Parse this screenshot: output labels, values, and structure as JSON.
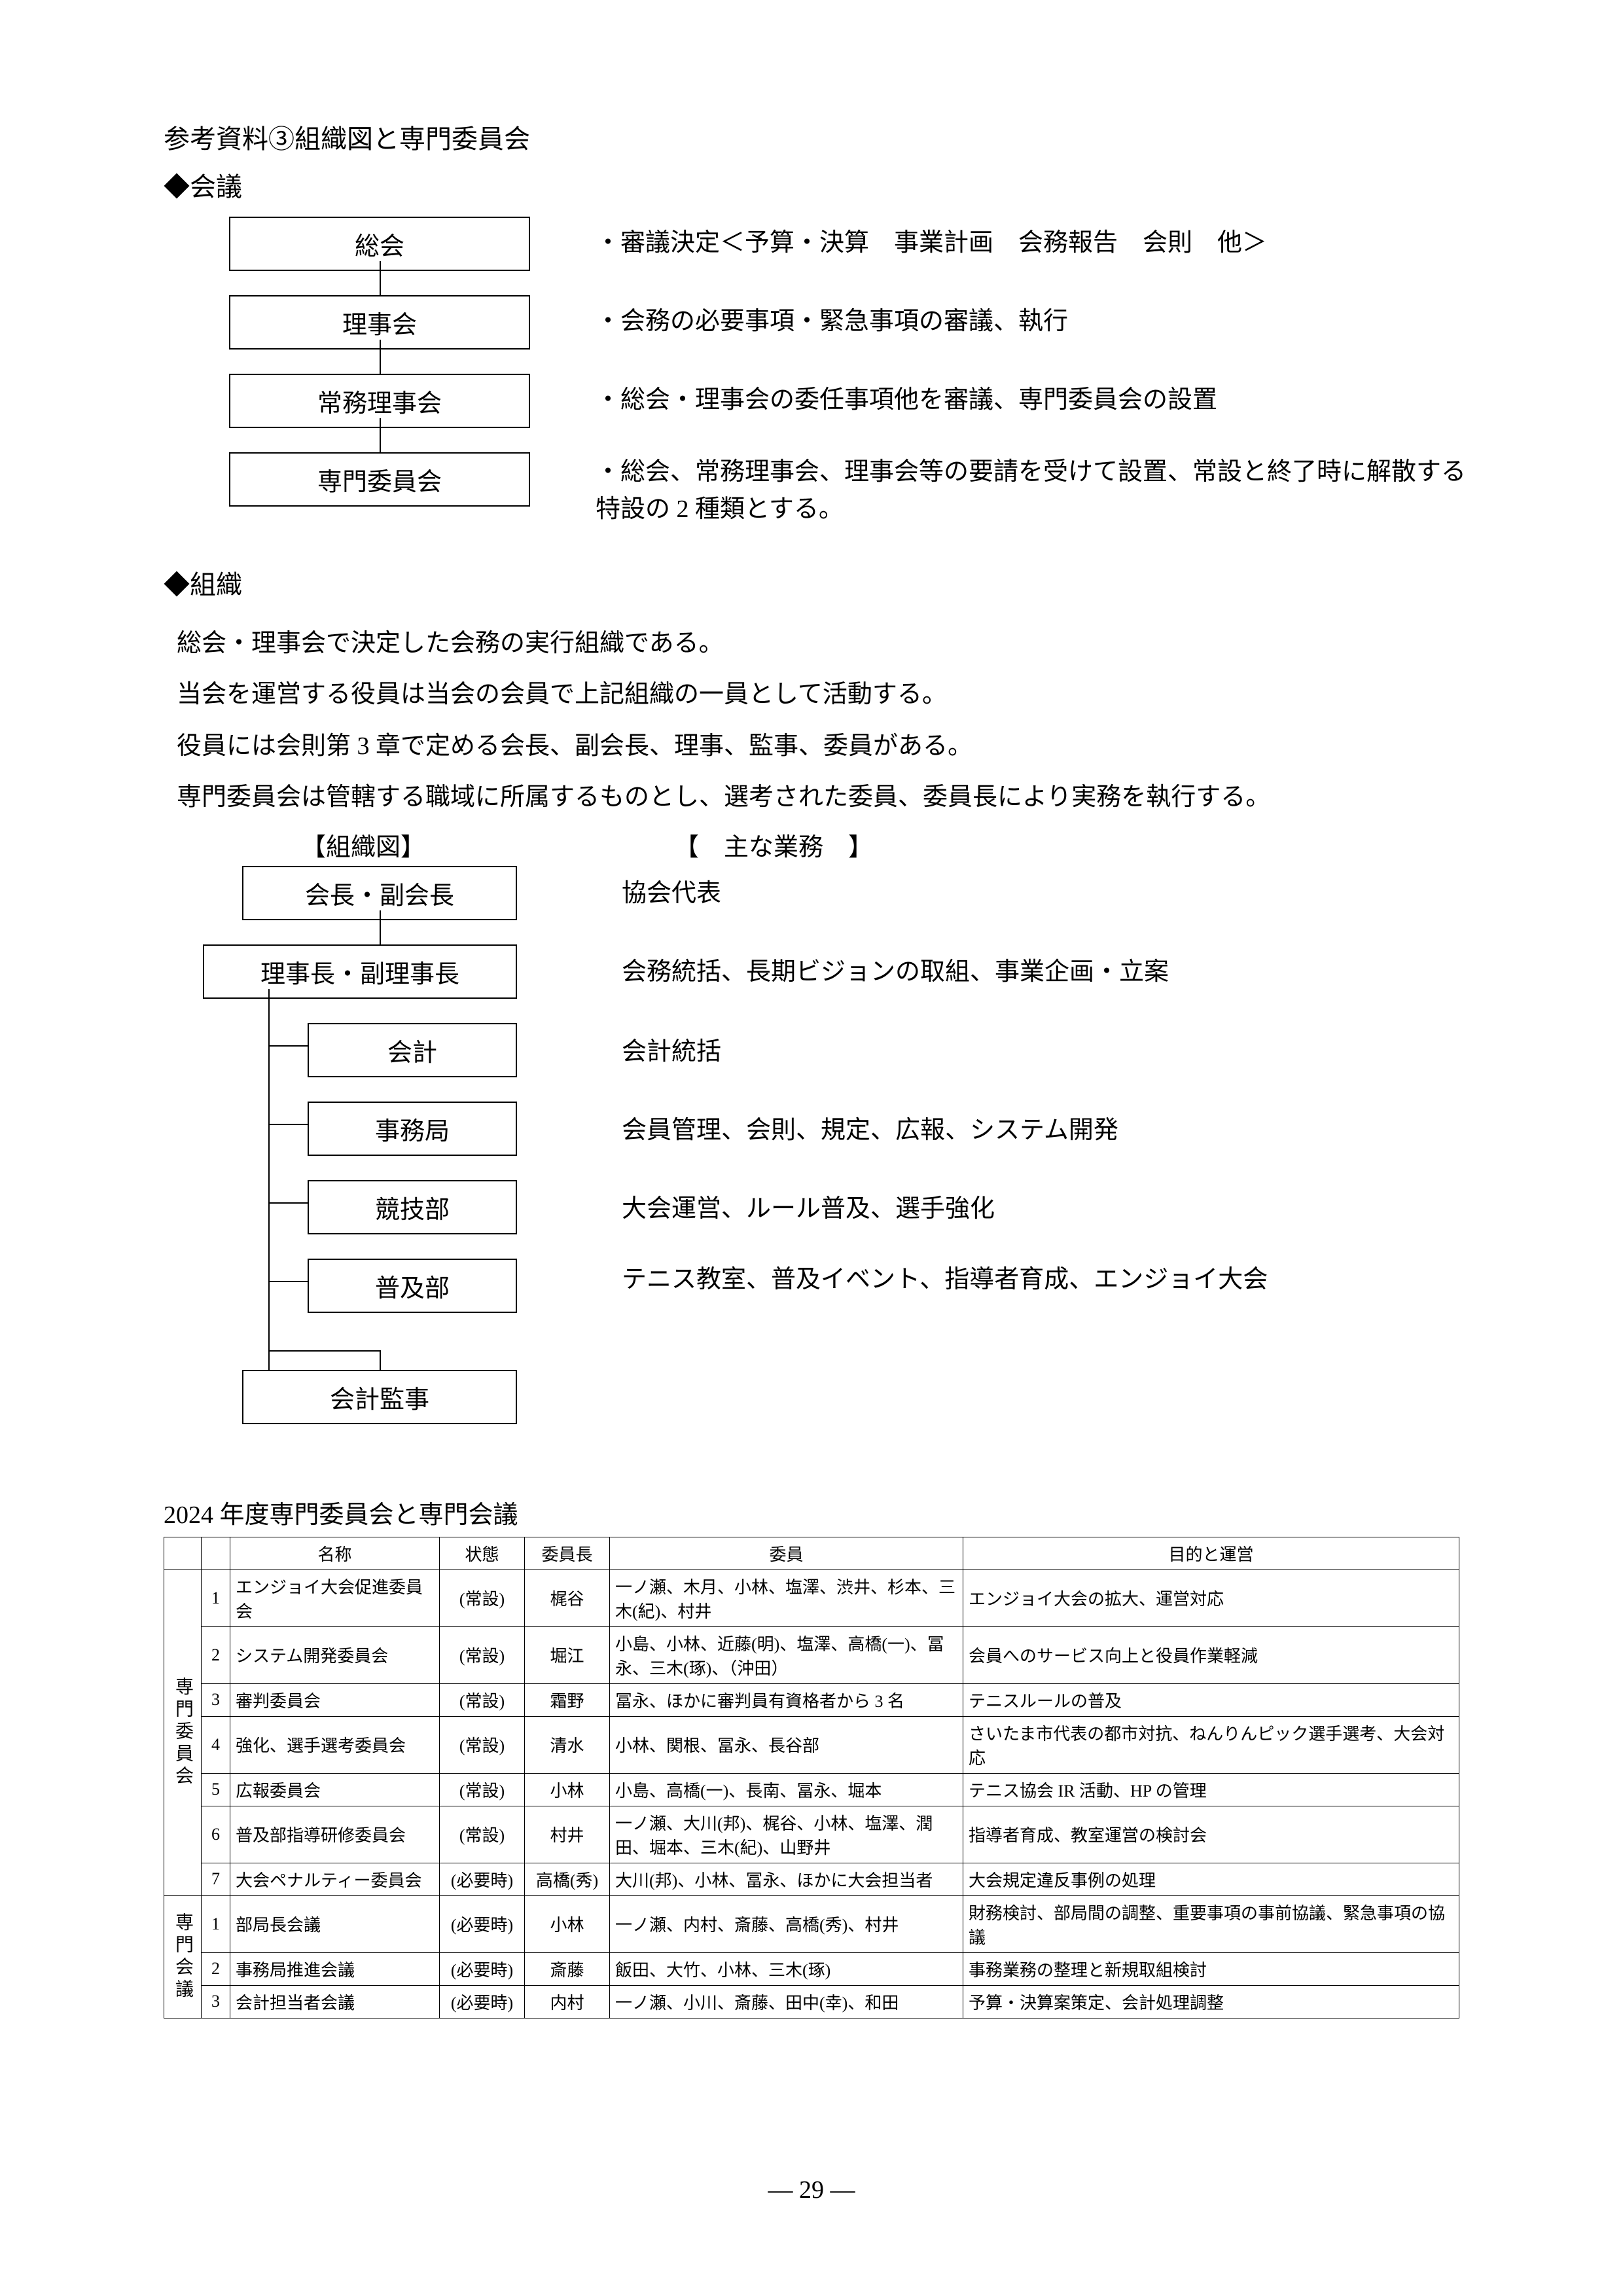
{
  "title": "参考資料③組織図と専門委員会",
  "heading_meetings": "◆会議",
  "meetings": [
    {
      "box": "総会",
      "desc": "・審議決定＜予算・決算　事業計画　会務報告　会則　他＞"
    },
    {
      "box": "理事会",
      "desc": "・会務の必要事項・緊急事項の審議、執行"
    },
    {
      "box": "常務理事会",
      "desc": "・総会・理事会の委任事項他を審議、専門委員会の設置"
    },
    {
      "box": "専門委員会",
      "desc": "・総会、常務理事会、理事会等の要請を受けて設置、常設と終了時に解散する特設の 2 種類とする。"
    }
  ],
  "heading_org": "◆組織",
  "org_paras": [
    "総会・理事会で決定した会務の実行組織である。",
    "当会を運営する役員は当会の会員で上記組織の一員として活動する。",
    "役員には会則第 3 章で定める会長、副会長、理事、監事、委員がある。",
    "専門委員会は管轄する職域に所属するものとし、選考された委員、委員長により実務を執行する。"
  ],
  "org2_header_left": "【組織図】",
  "org2_header_right": "【　主な業務　】",
  "org2": [
    {
      "box": "会長・副会長",
      "desc": "協会代表"
    },
    {
      "box": "理事長・副理事長",
      "desc": "会務統括、長期ビジョンの取組、事業企画・立案"
    },
    {
      "box": "会計",
      "desc": "会計統括"
    },
    {
      "box": "事務局",
      "desc": "会員管理、会則、規定、広報、システム開発"
    },
    {
      "box": "競技部",
      "desc": "大会運営、ルール普及、選手強化"
    },
    {
      "box": "普及部",
      "desc": "テニス教室、普及イベント、指導者育成、エンジョイ大会"
    },
    {
      "box": "会計監事",
      "desc": ""
    }
  ],
  "table_title": "2024 年度専門委員会と専門会議",
  "table_headers": [
    "",
    "",
    "名称",
    "状態",
    "委員長",
    "委員",
    "目的と運営"
  ],
  "group1_label": "専門委員会",
  "group1": [
    {
      "n": "1",
      "name": "エンジョイ大会促進委員会",
      "status": "(常設)",
      "chair": "梶谷",
      "members": "一ノ瀬、木月、小林、塩澤、渋井、杉本、三木(紀)、村井",
      "purpose": "エンジョイ大会の拡大、運営対応"
    },
    {
      "n": "2",
      "name": "システム開発委員会",
      "status": "(常設)",
      "chair": "堀江",
      "members": "小島、小林、近藤(明)、塩澤、高橋(一)、冨永、三木(琢)、（沖田）",
      "purpose": "会員へのサービス向上と役員作業軽減"
    },
    {
      "n": "3",
      "name": "審判委員会",
      "status": "(常設)",
      "chair": "霜野",
      "members": "冨永、ほかに審判員有資格者から 3 名",
      "purpose": "テニスルールの普及"
    },
    {
      "n": "4",
      "name": "強化、選手選考委員会",
      "status": "(常設)",
      "chair": "清水",
      "members": "小林、関根、冨永、長谷部",
      "purpose": "さいたま市代表の都市対抗、ねんりんピック選手選考、大会対応"
    },
    {
      "n": "5",
      "name": "広報委員会",
      "status": "(常設)",
      "chair": "小林",
      "members": "小島、高橋(一)、長南、冨永、堀本",
      "purpose": "テニス協会 IR 活動、HP の管理"
    },
    {
      "n": "6",
      "name": "普及部指導研修委員会",
      "status": "(常設)",
      "chair": "村井",
      "members": "一ノ瀬、大川(邦)、梶谷、小林、塩澤、潤田、堀本、三木(紀)、山野井",
      "purpose": "指導者育成、教室運営の検討会"
    },
    {
      "n": "7",
      "name": "大会ペナルティー委員会",
      "status": "(必要時)",
      "chair": "高橋(秀)",
      "members": "大川(邦)、小林、冨永、ほかに大会担当者",
      "purpose": "大会規定違反事例の処理"
    }
  ],
  "group2_label": "専門会議",
  "group2": [
    {
      "n": "1",
      "name": "部局長会議",
      "status": "(必要時)",
      "chair": "小林",
      "members": "一ノ瀬、内村、斎藤、高橋(秀)、村井",
      "purpose": "財務検討、部局間の調整、重要事項の事前協議、緊急事項の協議"
    },
    {
      "n": "2",
      "name": "事務局推進会議",
      "status": "(必要時)",
      "chair": "斎藤",
      "members": "飯田、大竹、小林、三木(琢)",
      "purpose": "事務業務の整理と新規取組検討"
    },
    {
      "n": "3",
      "name": "会計担当者会議",
      "status": "(必要時)",
      "chair": "内村",
      "members": "一ノ瀬、小川、斎藤、田中(幸)、和田",
      "purpose": "予算・決算案策定、会計処理調整"
    }
  ],
  "page_number": "― 29 ―"
}
